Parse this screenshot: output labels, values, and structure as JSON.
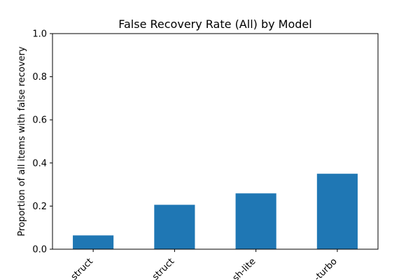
{
  "chart_data": {
    "type": "bar",
    "title": "False Recovery Rate (All) by Model",
    "xlabel": "",
    "ylabel": "Proportion of all items with false recovery",
    "ylim": [
      0,
      1.0
    ],
    "yticks": [
      "0.0",
      "0.2",
      "0.4",
      "0.6",
      "0.8",
      "1.0"
    ],
    "categories": [
      "struct",
      "struct",
      "sh-lite",
      "-turbo"
    ],
    "values": [
      0.064,
      0.206,
      0.259,
      0.35
    ],
    "bar_color": "#1f77b4",
    "grid": false,
    "legend": "none"
  }
}
